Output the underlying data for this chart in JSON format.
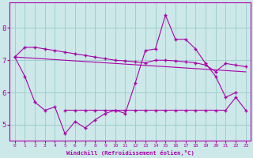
{
  "xlabel": "Windchill (Refroidissement éolien,°C)",
  "bg_color": "#cce8e8",
  "line_color": "#aa00aa",
  "grid_color": "#99cccc",
  "x_values": [
    0,
    1,
    2,
    3,
    4,
    5,
    6,
    7,
    8,
    9,
    10,
    11,
    12,
    13,
    14,
    15,
    16,
    17,
    18,
    19,
    20,
    21,
    22,
    23
  ],
  "line_top": [
    7.1,
    7.4,
    7.4,
    7.35,
    7.3,
    7.25,
    7.2,
    7.15,
    7.1,
    7.05,
    7.0,
    6.98,
    6.95,
    6.92,
    7.0,
    7.0,
    6.98,
    6.95,
    6.92,
    6.85,
    6.65,
    6.9,
    6.85,
    6.8
  ],
  "line_ref": [
    7.1,
    7.08,
    7.06,
    7.04,
    7.02,
    7.0,
    6.98,
    6.96,
    6.94,
    6.92,
    6.9,
    6.88,
    6.86,
    6.84,
    6.82,
    6.8,
    6.78,
    6.76,
    6.74,
    6.72,
    6.7,
    6.68,
    6.66,
    6.64
  ],
  "line_jagged": [
    7.1,
    6.5,
    5.7,
    5.45,
    5.55,
    4.72,
    5.1,
    4.9,
    5.15,
    5.35,
    5.45,
    5.35,
    6.3,
    7.3,
    7.35,
    8.4,
    7.65,
    7.65,
    7.35,
    6.9,
    6.5,
    5.85,
    6.0,
    null
  ],
  "line_flat": [
    null,
    null,
    null,
    null,
    null,
    5.45,
    5.45,
    5.45,
    5.45,
    5.45,
    5.45,
    5.45,
    5.45,
    5.45,
    5.45,
    5.45,
    5.45,
    5.45,
    5.45,
    5.45,
    5.45,
    5.45,
    5.85,
    5.45
  ],
  "ylim": [
    4.5,
    8.8
  ],
  "yticks": [
    5,
    6,
    7,
    8
  ],
  "xticks": [
    0,
    1,
    2,
    3,
    4,
    5,
    6,
    7,
    8,
    9,
    10,
    11,
    12,
    13,
    14,
    15,
    16,
    17,
    18,
    19,
    20,
    21,
    22,
    23
  ]
}
